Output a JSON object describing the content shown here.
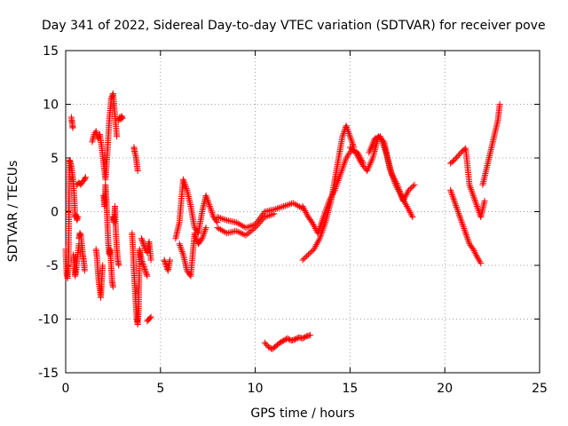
{
  "chart_data": {
    "type": "scatter",
    "title": "Day 341 of 2022, Sidereal Day-to-day VTEC variation (SDTVAR) for receiver pove",
    "xlabel": "GPS time / hours",
    "ylabel": "SDTVAR / TECUs",
    "xlim": [
      0,
      25
    ],
    "ylim": [
      -15,
      15
    ],
    "x_ticks": [
      0,
      5,
      10,
      15,
      20,
      25
    ],
    "y_ticks": [
      -15,
      -10,
      -5,
      0,
      5,
      10,
      15
    ],
    "x_tick_labels": [
      "0",
      "5",
      "10",
      "15",
      "20",
      "25"
    ],
    "y_tick_labels": [
      "-15",
      "-10",
      "-5",
      "0",
      "5",
      "10",
      "15"
    ],
    "grid": true,
    "marker": "+",
    "color": "#ff0000",
    "segments": [
      {
        "name": "early-1",
        "x": [
          0.0,
          0.05,
          0.1,
          0.15,
          0.2,
          0.25,
          0.3,
          0.35,
          0.4,
          0.45,
          0.5
        ],
        "y": [
          -3.5,
          -5.8,
          -6.2,
          -4.5,
          4.8,
          4.6,
          4.2,
          3.5,
          2.8,
          1.5,
          -0.5
        ]
      },
      {
        "name": "early-2",
        "x": [
          0.3,
          0.32,
          0.34,
          0.36,
          0.38
        ],
        "y": [
          8.8,
          8.5,
          8.3,
          8.0,
          7.8
        ]
      },
      {
        "name": "early-3",
        "x": [
          0.4,
          0.45,
          0.5,
          0.55,
          0.6,
          0.65,
          0.7
        ],
        "y": [
          -4.0,
          -5.0,
          -6.0,
          -5.5,
          -4.5,
          -3.8,
          -3.0
        ]
      },
      {
        "name": "early-4",
        "x": [
          0.55,
          0.6,
          0.65
        ],
        "y": [
          -0.3,
          -0.8,
          -0.5
        ]
      },
      {
        "name": "early-5",
        "x": [
          0.6,
          0.7,
          0.8,
          0.9,
          1.0,
          1.05
        ],
        "y": [
          2.5,
          2.7,
          2.5,
          2.8,
          3.0,
          3.2
        ]
      },
      {
        "name": "early-6",
        "x": [
          0.7,
          0.75,
          0.8,
          0.85,
          0.9,
          0.95,
          1.0
        ],
        "y": [
          -2.5,
          -2.0,
          -2.2,
          -3.0,
          -4.0,
          -4.5,
          -5.5
        ]
      },
      {
        "name": "early-7",
        "x": [
          1.4,
          1.5,
          1.6,
          1.7,
          1.8,
          1.9,
          2.0,
          2.1,
          2.2,
          2.3,
          2.4,
          2.5,
          2.6,
          2.7
        ],
        "y": [
          6.5,
          7.2,
          7.5,
          6.8,
          7.2,
          6.0,
          4.5,
          3.0,
          5.5,
          8.5,
          10.5,
          11.0,
          9.0,
          7.0
        ]
      },
      {
        "name": "early-8",
        "x": [
          1.6,
          1.65,
          1.7,
          1.75,
          1.8,
          1.85,
          1.9,
          1.95
        ],
        "y": [
          -3.5,
          -4.2,
          -5.5,
          -6.5,
          -7.2,
          -8.0,
          -6.5,
          -5.0
        ]
      },
      {
        "name": "early-9",
        "x": [
          2.0,
          2.05,
          2.1,
          2.15,
          2.2,
          2.25,
          2.3,
          2.35,
          2.4,
          2.45,
          2.5
        ],
        "y": [
          1.5,
          0.5,
          2.5,
          1.0,
          -1.0,
          -3.0,
          -4.0,
          -3.5,
          -5.0,
          -6.5,
          -7.0
        ]
      },
      {
        "name": "early-10",
        "x": [
          2.5,
          2.55,
          2.6,
          2.65,
          2.7,
          2.75,
          2.8
        ],
        "y": [
          -0.5,
          -1.0,
          0.5,
          -2.0,
          -3.5,
          -4.5,
          -5.0
        ]
      },
      {
        "name": "early-11",
        "x": [
          2.8,
          2.85,
          2.9,
          2.95,
          3.0
        ],
        "y": [
          8.5,
          8.8,
          8.6,
          8.9,
          8.7
        ]
      },
      {
        "name": "early-12",
        "x": [
          3.6,
          3.65,
          3.7,
          3.75,
          3.8
        ],
        "y": [
          6.0,
          5.5,
          5.2,
          4.5,
          3.8
        ]
      },
      {
        "name": "early-13",
        "x": [
          3.5,
          3.55,
          3.6,
          3.65,
          3.7,
          3.75,
          3.8,
          3.85,
          3.9,
          4.0,
          4.1,
          4.2,
          4.3
        ],
        "y": [
          -2.0,
          -3.5,
          -5.5,
          -7.0,
          -8.5,
          -10.0,
          -10.5,
          -9.0,
          -3.5,
          -4.5,
          -5.0,
          -5.5,
          -6.0
        ]
      },
      {
        "name": "early-14",
        "x": [
          4.0,
          4.1,
          4.2,
          4.3,
          4.4,
          4.5
        ],
        "y": [
          -2.5,
          -3.0,
          -3.5,
          -3.8,
          -2.8,
          -4.5
        ]
      },
      {
        "name": "early-15",
        "x": [
          4.3,
          4.4,
          4.5
        ],
        "y": [
          -10.2,
          -10.0,
          -9.8
        ]
      },
      {
        "name": "early-16",
        "x": [
          5.2,
          5.3,
          5.4,
          5.5
        ],
        "y": [
          -4.5,
          -5.0,
          -5.5,
          -4.5
        ]
      },
      {
        "name": "mid-1",
        "x": [
          5.8,
          6.0,
          6.2,
          6.4,
          6.6,
          6.8,
          7.0,
          7.2,
          7.4,
          7.6,
          7.8,
          8.0
        ],
        "y": [
          -2.5,
          -1.0,
          3.0,
          2.0,
          0.5,
          -1.5,
          -2.0,
          0.0,
          1.5,
          0.5,
          -0.5,
          -1.0
        ]
      },
      {
        "name": "mid-2",
        "x": [
          6.0,
          6.2,
          6.4,
          6.6,
          6.8,
          7.0,
          7.2,
          7.4
        ],
        "y": [
          -3.0,
          -4.0,
          -5.5,
          -6.0,
          -2.0,
          -3.0,
          -2.5,
          -1.5
        ]
      },
      {
        "name": "mid-3",
        "x": [
          8.0,
          8.5,
          9.0,
          9.5,
          10.0,
          10.5,
          11.0,
          11.5,
          12.0,
          12.5
        ],
        "y": [
          -0.5,
          -0.8,
          -1.0,
          -1.5,
          -1.2,
          0.0,
          0.2,
          0.5,
          0.8,
          0.3
        ]
      },
      {
        "name": "mid-4",
        "x": [
          8.0,
          8.5,
          9.0,
          9.5,
          10.0,
          10.5,
          11.0
        ],
        "y": [
          -1.5,
          -2.0,
          -1.8,
          -2.2,
          -1.5,
          -0.5,
          -0.2
        ]
      },
      {
        "name": "low-1",
        "x": [
          10.5,
          10.7,
          10.9,
          11.1,
          11.3,
          11.5,
          11.7,
          11.9,
          12.1,
          12.3,
          12.5,
          12.7,
          12.9
        ],
        "y": [
          -12.2,
          -12.6,
          -12.8,
          -12.5,
          -12.2,
          -12.0,
          -11.8,
          -12.0,
          -11.9,
          -11.7,
          -11.8,
          -11.6,
          -11.5
        ]
      },
      {
        "name": "rise-1",
        "x": [
          12.5,
          12.8,
          13.0,
          13.3,
          13.6,
          13.9,
          14.2,
          14.5,
          14.8,
          15.1,
          15.4,
          15.7
        ],
        "y": [
          0.5,
          -0.5,
          -1.0,
          -2.0,
          -0.5,
          1.0,
          2.0,
          3.5,
          5.0,
          5.8,
          5.5,
          4.5
        ]
      },
      {
        "name": "rise-2",
        "x": [
          12.5,
          12.8,
          13.1,
          13.4,
          13.7,
          14.0,
          14.2,
          14.4,
          14.6,
          14.8,
          15.0,
          15.2
        ],
        "y": [
          -4.5,
          -4.0,
          -3.5,
          -2.5,
          -1.0,
          1.0,
          3.0,
          5.0,
          7.0,
          8.0,
          7.0,
          6.0
        ]
      },
      {
        "name": "peak-1",
        "x": [
          15.0,
          15.3,
          15.6,
          15.9,
          16.2,
          16.5,
          16.8,
          17.1,
          17.4,
          17.7,
          18.0,
          18.3
        ],
        "y": [
          6.0,
          5.5,
          4.5,
          3.8,
          5.0,
          7.0,
          6.5,
          4.0,
          2.5,
          1.5,
          0.5,
          -0.5
        ]
      },
      {
        "name": "peak-2",
        "x": [
          16.0,
          16.3,
          16.6,
          16.9,
          17.2,
          17.5,
          17.8,
          18.1,
          18.4
        ],
        "y": [
          5.5,
          6.8,
          7.0,
          5.5,
          3.5,
          2.5,
          1.0,
          2.0,
          2.5
        ]
      },
      {
        "name": "late-1",
        "x": [
          20.3,
          20.5,
          20.7,
          20.9,
          21.1,
          21.3,
          21.5,
          21.7,
          21.9,
          22.1
        ],
        "y": [
          4.5,
          4.8,
          5.2,
          5.6,
          5.9,
          2.5,
          1.5,
          0.5,
          -0.5,
          1.0
        ]
      },
      {
        "name": "late-2",
        "x": [
          20.3,
          20.5,
          20.7,
          20.9,
          21.1,
          21.3,
          21.5,
          21.7,
          21.9
        ],
        "y": [
          2.0,
          1.0,
          0.0,
          -1.0,
          -2.0,
          -3.0,
          -3.5,
          -4.2,
          -4.8
        ]
      },
      {
        "name": "late-3",
        "x": [
          22.0,
          22.2,
          22.4,
          22.6,
          22.8,
          22.9
        ],
        "y": [
          2.5,
          4.0,
          5.5,
          7.0,
          8.5,
          10.0
        ]
      }
    ]
  }
}
